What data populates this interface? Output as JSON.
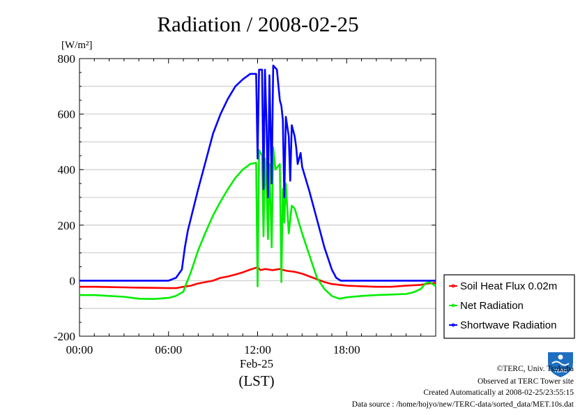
{
  "chart_data": {
    "type": "line",
    "title": "Radiation / 2008-02-25",
    "y_unit": "[W/m²]",
    "ylim": [
      -200,
      800
    ],
    "y_ticks": [
      {
        "v": 800,
        "label": "800"
      },
      {
        "v": 600,
        "label": "600"
      },
      {
        "v": 400,
        "label": "400"
      },
      {
        "v": 200,
        "label": "200"
      },
      {
        "v": 0,
        "label": "0"
      },
      {
        "v": -200,
        "label": "-200"
      }
    ],
    "xlim": [
      0,
      24
    ],
    "x_ticks": [
      {
        "v": 0,
        "label": "00:00"
      },
      {
        "v": 6,
        "label": "06:00"
      },
      {
        "v": 12,
        "label": "12:00"
      },
      {
        "v": 18,
        "label": "18:00"
      }
    ],
    "x_date_label": "Feb-25",
    "x_tz_label": "(LST)",
    "grid": true,
    "legend_position": "right",
    "series": [
      {
        "name": "Soil Heat Flux 0.02m",
        "color": "#ff0000",
        "points": [
          [
            0,
            -22
          ],
          [
            1,
            -22
          ],
          [
            2,
            -23
          ],
          [
            3,
            -24
          ],
          [
            4,
            -25
          ],
          [
            5,
            -26
          ],
          [
            6,
            -27
          ],
          [
            6.5,
            -27
          ],
          [
            7,
            -22
          ],
          [
            7.5,
            -18
          ],
          [
            8,
            -10
          ],
          [
            8.5,
            -5
          ],
          [
            9,
            0
          ],
          [
            9.5,
            10
          ],
          [
            10,
            15
          ],
          [
            10.5,
            22
          ],
          [
            11,
            30
          ],
          [
            11.5,
            40
          ],
          [
            12,
            48
          ],
          [
            12.2,
            38
          ],
          [
            12.5,
            42
          ],
          [
            13,
            38
          ],
          [
            13.5,
            42
          ],
          [
            14,
            35
          ],
          [
            14.5,
            32
          ],
          [
            15,
            25
          ],
          [
            15.5,
            15
          ],
          [
            16,
            5
          ],
          [
            16.5,
            -5
          ],
          [
            17,
            -12
          ],
          [
            18,
            -18
          ],
          [
            19,
            -20
          ],
          [
            20,
            -22
          ],
          [
            21,
            -22
          ],
          [
            22,
            -18
          ],
          [
            23,
            -15
          ],
          [
            23.5,
            -10
          ],
          [
            24,
            -8
          ]
        ]
      },
      {
        "name": "Net Radiation",
        "color": "#00ee00",
        "points": [
          [
            0,
            -52
          ],
          [
            1,
            -52
          ],
          [
            2,
            -55
          ],
          [
            3,
            -58
          ],
          [
            4,
            -65
          ],
          [
            5,
            -66
          ],
          [
            6,
            -62
          ],
          [
            6.5,
            -55
          ],
          [
            7,
            -40
          ],
          [
            7.2,
            -10
          ],
          [
            7.5,
            30
          ],
          [
            8,
            110
          ],
          [
            8.5,
            175
          ],
          [
            9,
            235
          ],
          [
            9.5,
            285
          ],
          [
            10,
            330
          ],
          [
            10.5,
            370
          ],
          [
            11,
            400
          ],
          [
            11.5,
            420
          ],
          [
            11.9,
            425
          ],
          [
            12,
            -20
          ],
          [
            12.1,
            470
          ],
          [
            12.3,
            450
          ],
          [
            12.4,
            160
          ],
          [
            12.5,
            440
          ],
          [
            12.6,
            330
          ],
          [
            12.7,
            150
          ],
          [
            12.8,
            420
          ],
          [
            12.95,
            120
          ],
          [
            13.05,
            480
          ],
          [
            13.2,
            400
          ],
          [
            13.5,
            420
          ],
          [
            13.6,
            -5
          ],
          [
            13.7,
            330
          ],
          [
            13.8,
            210
          ],
          [
            13.9,
            350
          ],
          [
            14.1,
            170
          ],
          [
            14.3,
            270
          ],
          [
            14.5,
            260
          ],
          [
            15,
            170
          ],
          [
            15.5,
            90
          ],
          [
            16,
            10
          ],
          [
            16.5,
            -30
          ],
          [
            17,
            -55
          ],
          [
            17.5,
            -65
          ],
          [
            18,
            -60
          ],
          [
            19,
            -55
          ],
          [
            20,
            -52
          ],
          [
            21,
            -50
          ],
          [
            22,
            -48
          ],
          [
            22.5,
            -42
          ],
          [
            23,
            -30
          ],
          [
            23.3,
            -10
          ],
          [
            23.6,
            -5
          ],
          [
            24,
            -20
          ]
        ]
      },
      {
        "name": "Shortwave Radiation",
        "color": "#0000ff",
        "points": [
          [
            0,
            0
          ],
          [
            1,
            0
          ],
          [
            2,
            0
          ],
          [
            3,
            0
          ],
          [
            4,
            0
          ],
          [
            5,
            0
          ],
          [
            6,
            0
          ],
          [
            6.5,
            10
          ],
          [
            6.9,
            40
          ],
          [
            7.1,
            120
          ],
          [
            7.3,
            180
          ],
          [
            8,
            330
          ],
          [
            8.5,
            430
          ],
          [
            9,
            530
          ],
          [
            9.5,
            600
          ],
          [
            10,
            655
          ],
          [
            10.5,
            700
          ],
          [
            11,
            725
          ],
          [
            11.5,
            745
          ],
          [
            11.9,
            745
          ],
          [
            12,
            440
          ],
          [
            12.1,
            760
          ],
          [
            12.3,
            760
          ],
          [
            12.4,
            330
          ],
          [
            12.5,
            760
          ],
          [
            12.6,
            560
          ],
          [
            12.7,
            300
          ],
          [
            12.8,
            740
          ],
          [
            12.95,
            350
          ],
          [
            13.05,
            775
          ],
          [
            13.3,
            760
          ],
          [
            13.5,
            650
          ],
          [
            13.6,
            630
          ],
          [
            13.7,
            580
          ],
          [
            13.8,
            300
          ],
          [
            13.9,
            590
          ],
          [
            14.1,
            520
          ],
          [
            14.2,
            360
          ],
          [
            14.3,
            560
          ],
          [
            14.5,
            520
          ],
          [
            14.6,
            480
          ],
          [
            14.7,
            420
          ],
          [
            14.9,
            460
          ],
          [
            15,
            410
          ],
          [
            15.5,
            320
          ],
          [
            16,
            220
          ],
          [
            16.5,
            120
          ],
          [
            17,
            40
          ],
          [
            17.3,
            10
          ],
          [
            17.6,
            0
          ],
          [
            18,
            0
          ],
          [
            19,
            0
          ],
          [
            20,
            0
          ],
          [
            21,
            0
          ],
          [
            22,
            0
          ],
          [
            23,
            0
          ],
          [
            24,
            0
          ]
        ]
      }
    ]
  },
  "logo": {
    "text": "TERC",
    "color": "#1f6fc0"
  },
  "credits": {
    "line1": "©TERC, Univ. Tsukuba",
    "line2": "Observed at TERC Tower site",
    "line3": "Created Automatically at 2008-02-25/23:55:15",
    "line4": "Data source : /home/hojyo/new/TERC-data/sorted_data/MET.10s.dat"
  }
}
